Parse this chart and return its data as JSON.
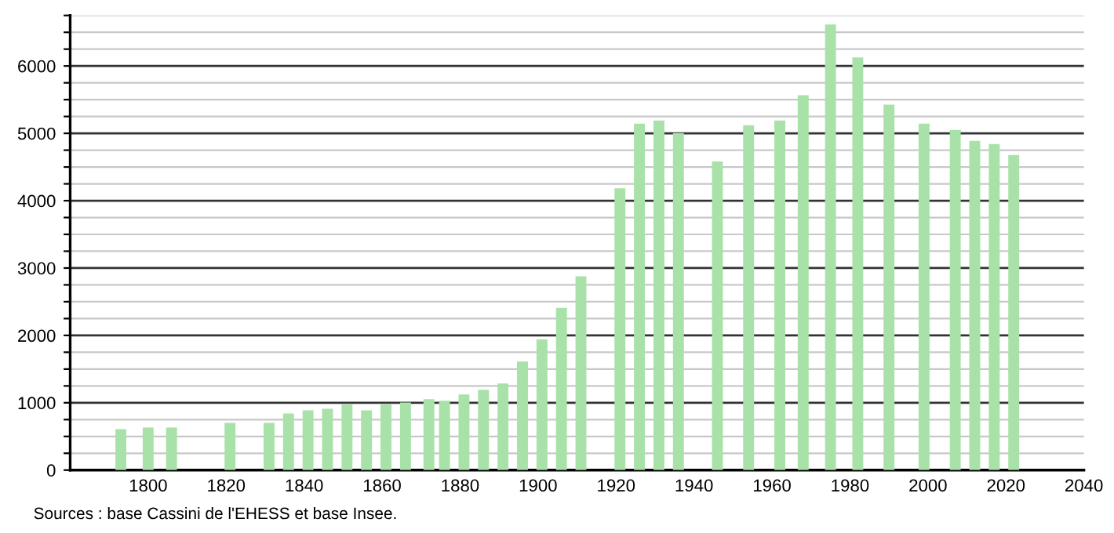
{
  "chart_data": {
    "type": "bar",
    "x": [
      1793,
      1800,
      1806,
      1821,
      1831,
      1836,
      1841,
      1846,
      1851,
      1856,
      1861,
      1866,
      1872,
      1876,
      1881,
      1886,
      1891,
      1896,
      1901,
      1906,
      1911,
      1921,
      1926,
      1931,
      1936,
      1946,
      1954,
      1962,
      1968,
      1975,
      1982,
      1990,
      1999,
      2007,
      2012,
      2017,
      2022
    ],
    "values": [
      608,
      631,
      631,
      701,
      701,
      842,
      888,
      912,
      974,
      888,
      974,
      1005,
      1052,
      1029,
      1122,
      1192,
      1286,
      1613,
      1941,
      2408,
      2876,
      4185,
      5144,
      5191,
      5004,
      4583,
      5121,
      5191,
      5565,
      6617,
      6126,
      5425,
      5144,
      5051,
      4887,
      4840,
      4677
    ],
    "color": "#a8e2a8",
    "xlim": [
      1780,
      2040
    ],
    "xticks": [
      1800,
      1820,
      1840,
      1860,
      1880,
      1900,
      1920,
      1940,
      1960,
      1980,
      2000,
      2020,
      2040
    ],
    "ylim": [
      0,
      6750
    ],
    "yticks": [
      0,
      {
        "value": 250,
        "label": null
      },
      {
        "value": 500,
        "label": null
      },
      {
        "value": 750,
        "label": null
      },
      1000,
      {
        "value": 1250,
        "label": null
      },
      {
        "value": 1500,
        "label": null
      },
      {
        "value": 1750,
        "label": null
      },
      2000,
      {
        "value": 2250,
        "label": null
      },
      {
        "value": 2500,
        "label": null
      },
      {
        "value": 2750,
        "label": null
      },
      3000,
      {
        "value": 3250,
        "label": null
      },
      {
        "value": 3500,
        "label": null
      },
      {
        "value": 3750,
        "label": null
      },
      4000,
      {
        "value": 4250,
        "label": null
      },
      {
        "value": 4500,
        "label": null
      },
      {
        "value": 4750,
        "label": null
      },
      5000,
      {
        "value": 5250,
        "label": null
      },
      {
        "value": 5500,
        "label": null
      },
      {
        "value": 5750,
        "label": null
      },
      6000,
      {
        "value": 6250,
        "label": null
      },
      {
        "value": 6500,
        "label": null
      },
      {
        "value": 6750,
        "label": null
      }
    ],
    "grid": "y",
    "annotations": [
      "Sources : base Cassini de l'EHESS et base Insee."
    ]
  }
}
